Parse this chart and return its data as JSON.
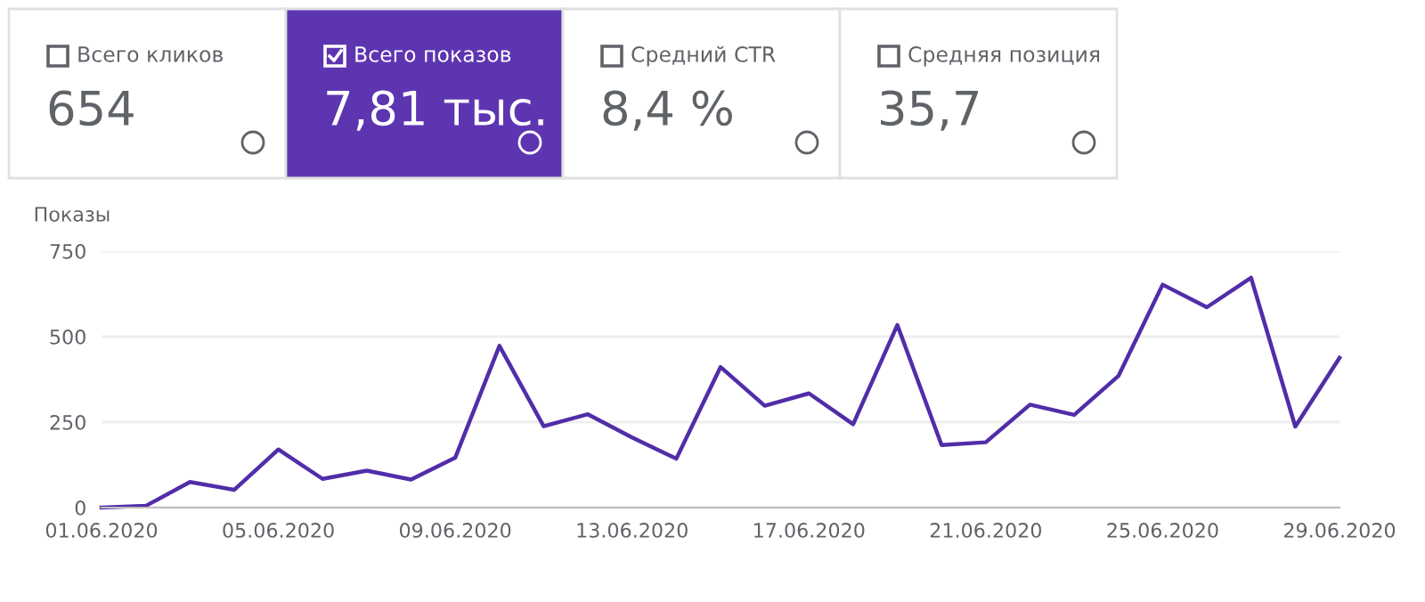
{
  "chart_data": [
    {
      "type": "other",
      "color": "#5e35b1",
      "annotations": [
        "Всего кликов",
        "654",
        "Всего показов",
        "7,81 тыс.",
        "Средний CTR",
        "8,4 %",
        "Средняя позиция",
        "35,7"
      ]
    },
    {
      "type": "line",
      "ylabel": "Показы",
      "grid": "y",
      "marker": "none",
      "line_style": "solid",
      "x": [
        "2020-06-01",
        "2020-06-02",
        "2020-06-03",
        "2020-06-04",
        "2020-06-05",
        "2020-06-06",
        "2020-06-07",
        "2020-06-08",
        "2020-06-09",
        "2020-06-10",
        "2020-06-11",
        "2020-06-12",
        "2020-06-13",
        "2020-06-14",
        "2020-06-15",
        "2020-06-16",
        "2020-06-17",
        "2020-06-18",
        "2020-06-19",
        "2020-06-20",
        "2020-06-21",
        "2020-06-22",
        "2020-06-23",
        "2020-06-24",
        "2020-06-25",
        "2020-06-26",
        "2020-06-27",
        "2020-06-28",
        "2020-06-29"
      ],
      "series": [
        {
          "color": "#512da8",
          "values": [
            0,
            5,
            75,
            52,
            170,
            84,
            108,
            82,
            146,
            473,
            238,
            273,
            205,
            143,
            411,
            298,
            334,
            244,
            534,
            183,
            191,
            301,
            271,
            385,
            652,
            586,
            672,
            237,
            438
          ]
        }
      ],
      "xlim": [
        "2020-06-01",
        "2020-06-29"
      ],
      "xticks": [
        {
          "value": "2020-06-01",
          "label": "01.06.2020"
        },
        {
          "value": "2020-06-05",
          "label": "05.06.2020"
        },
        {
          "value": "2020-06-09",
          "label": "09.06.2020"
        },
        {
          "value": "2020-06-13",
          "label": "13.06.2020"
        },
        {
          "value": "2020-06-17",
          "label": "17.06.2020"
        },
        {
          "value": "2020-06-21",
          "label": "21.06.2020"
        },
        {
          "value": "2020-06-25",
          "label": "25.06.2020"
        },
        {
          "value": "2020-06-29",
          "label": "29.06.2020"
        }
      ],
      "ylim": [
        0,
        750
      ],
      "yticks": [
        0,
        250,
        500,
        750
      ]
    }
  ]
}
